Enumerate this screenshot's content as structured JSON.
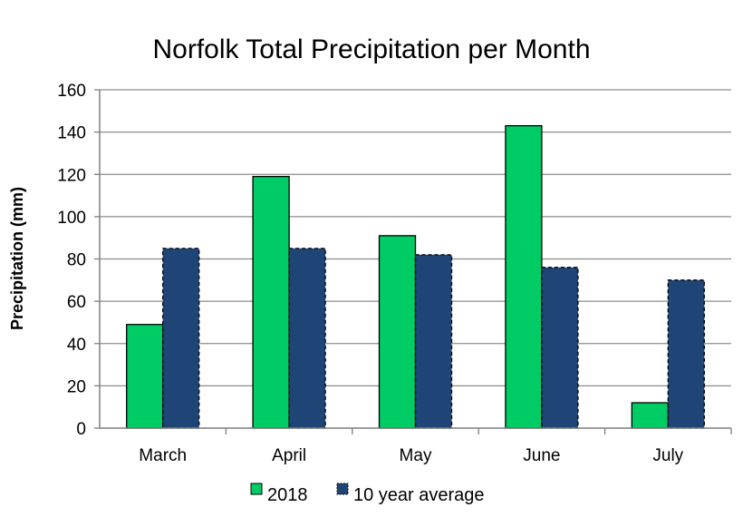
{
  "chart_data": {
    "type": "bar",
    "title": "Norfolk Total Precipitation per Month",
    "xlabel": "",
    "ylabel": "Precipitation (mm)",
    "ylim": [
      0,
      160
    ],
    "yticks": [
      0,
      20,
      40,
      60,
      80,
      100,
      120,
      140,
      160
    ],
    "grid": true,
    "legend_position": "bottom",
    "categories": [
      "March",
      "April",
      "May",
      "June",
      "July"
    ],
    "series": [
      {
        "name": "2018",
        "values": [
          49,
          119,
          91,
          143,
          12
        ],
        "color": "#00cc66",
        "border": "solid"
      },
      {
        "name": "10 year average",
        "values": [
          85,
          85,
          82,
          76,
          70
        ],
        "color": "#1f4577",
        "border": "dashed"
      }
    ]
  }
}
